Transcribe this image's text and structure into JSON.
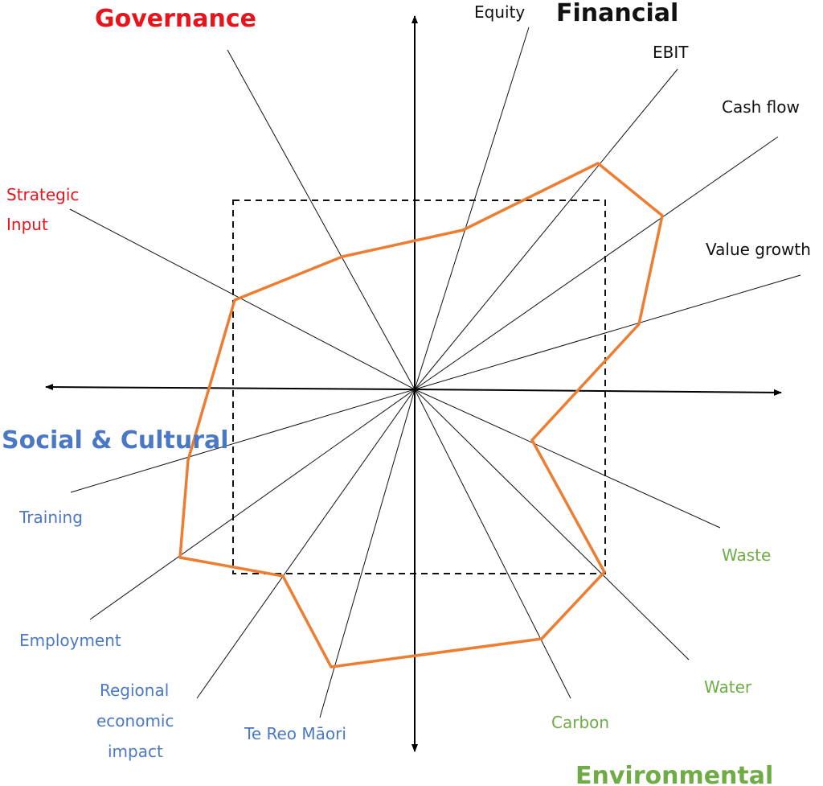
{
  "colors": {
    "governance": "#e8141b",
    "financial": "#111111",
    "social": "#4a78c4",
    "environmental": "#6fac46",
    "profile": "#ed7d31",
    "box": "#111111"
  },
  "quadrants": {
    "governance": "Governance",
    "financial": "Financial",
    "social": "Social & Cultural",
    "environmental": "Environmental"
  },
  "labels": {
    "equity": "Equity",
    "ebit": "EBIT",
    "cash_flow": "Cash flow",
    "value_growth": "Value growth",
    "strategic_1": "Strategic",
    "strategic_2": "Input",
    "training": "Training",
    "employment": "Employment",
    "regional_1": "Regional",
    "regional_2": "economic",
    "regional_3": "impact",
    "te_reo": "Te Reo Māori",
    "carbon": "Carbon",
    "water": "Water",
    "waste": "Waste"
  }
}
